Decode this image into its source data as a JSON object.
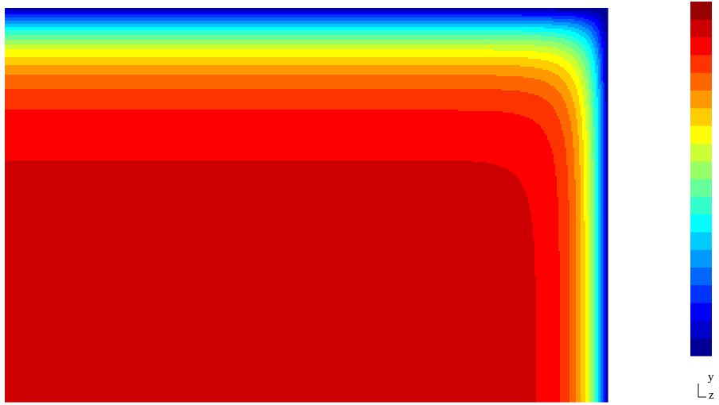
{
  "chart_data": {
    "type": "heatmap",
    "plot_kind": "filled-contour",
    "colormap": "jet",
    "contour_levels": 20,
    "colorbar": {
      "orientation": "vertical",
      "placement": "right",
      "tick_labels": []
    },
    "field": {
      "description_of_shape": "maximum in lower-left region, decaying toward top and right boundaries",
      "edge_value_top": 0.0,
      "edge_value_right": 0.0,
      "max_value": 0.92
    },
    "axes_triad": {
      "vertical": "y",
      "out_of_plane": "z"
    },
    "colors": {
      "low": "#0000ff",
      "mid_low": "#00ffff",
      "mid": "#00ff00",
      "mid_high": "#ffff00",
      "high": "#ff0000"
    }
  }
}
